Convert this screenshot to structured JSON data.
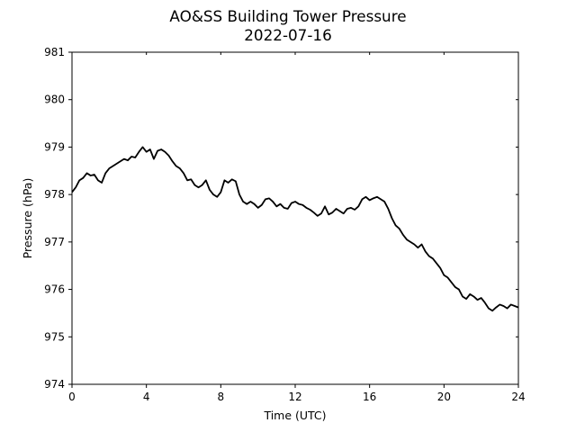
{
  "chart_data": {
    "type": "line",
    "title": "AO&SS Building Tower Pressure",
    "subtitle": "2022-07-16",
    "xlabel": "Time (UTC)",
    "ylabel": "Pressure (hPa)",
    "xlim": [
      0,
      24
    ],
    "ylim": [
      974,
      981
    ],
    "xticks": [
      0,
      4,
      8,
      12,
      16,
      20,
      24
    ],
    "yticks": [
      974,
      975,
      976,
      977,
      978,
      979,
      980,
      981
    ],
    "grid": false,
    "line_color": "#000000",
    "series": [
      {
        "x": [
          0,
          0.2,
          0.4,
          0.6,
          0.8,
          1.0,
          1.2,
          1.4,
          1.6,
          1.8,
          2.0,
          2.2,
          2.4,
          2.6,
          2.8,
          3.0,
          3.2,
          3.4,
          3.6,
          3.8,
          4.0,
          4.2,
          4.4,
          4.6,
          4.8,
          5.0,
          5.2,
          5.4,
          5.6,
          5.8,
          6.0,
          6.2,
          6.4,
          6.6,
          6.8,
          7.0,
          7.2,
          7.4,
          7.6,
          7.8,
          8.0,
          8.2,
          8.4,
          8.6,
          8.8,
          9.0,
          9.2,
          9.4,
          9.6,
          9.8,
          10.0,
          10.2,
          10.4,
          10.6,
          10.8,
          11.0,
          11.2,
          11.4,
          11.6,
          11.8,
          12.0,
          12.2,
          12.4,
          12.6,
          12.8,
          13.0,
          13.2,
          13.4,
          13.6,
          13.8,
          14.0,
          14.2,
          14.4,
          14.6,
          14.8,
          15.0,
          15.2,
          15.4,
          15.6,
          15.8,
          16.0,
          16.2,
          16.4,
          16.6,
          16.8,
          17.0,
          17.2,
          17.4,
          17.6,
          17.8,
          18.0,
          18.2,
          18.4,
          18.6,
          18.8,
          19.0,
          19.2,
          19.4,
          19.6,
          19.8,
          20.0,
          20.2,
          20.4,
          20.6,
          20.8,
          21.0,
          21.2,
          21.4,
          21.6,
          21.8,
          22.0,
          22.2,
          22.4,
          22.6,
          22.8,
          23.0,
          23.2,
          23.4,
          23.6,
          23.8,
          24.0
        ],
        "y": [
          978.05,
          978.15,
          978.3,
          978.35,
          978.45,
          978.4,
          978.42,
          978.3,
          978.25,
          978.45,
          978.55,
          978.6,
          978.65,
          978.7,
          978.75,
          978.72,
          978.8,
          978.78,
          978.9,
          979.0,
          978.9,
          978.95,
          978.75,
          978.92,
          978.95,
          978.9,
          978.82,
          978.7,
          978.6,
          978.55,
          978.45,
          978.3,
          978.32,
          978.2,
          978.15,
          978.2,
          978.3,
          978.1,
          978.0,
          977.95,
          978.05,
          978.3,
          978.25,
          978.32,
          978.28,
          978.0,
          977.85,
          977.8,
          977.85,
          977.8,
          977.72,
          977.78,
          977.9,
          977.92,
          977.85,
          977.75,
          977.8,
          977.72,
          977.7,
          977.82,
          977.85,
          977.8,
          977.78,
          977.72,
          977.68,
          977.62,
          977.55,
          977.6,
          977.75,
          977.58,
          977.62,
          977.7,
          977.65,
          977.6,
          977.7,
          977.72,
          977.68,
          977.75,
          977.9,
          977.95,
          977.88,
          977.92,
          977.95,
          977.9,
          977.85,
          977.7,
          977.5,
          977.35,
          977.28,
          977.15,
          977.05,
          977.0,
          976.95,
          976.88,
          976.95,
          976.8,
          976.7,
          976.65,
          976.55,
          976.45,
          976.3,
          976.25,
          976.15,
          976.05,
          976.0,
          975.85,
          975.8,
          975.9,
          975.85,
          975.78,
          975.82,
          975.72,
          975.6,
          975.55,
          975.62,
          975.68,
          975.65,
          975.6,
          975.68,
          975.65,
          975.62
        ]
      }
    ]
  }
}
